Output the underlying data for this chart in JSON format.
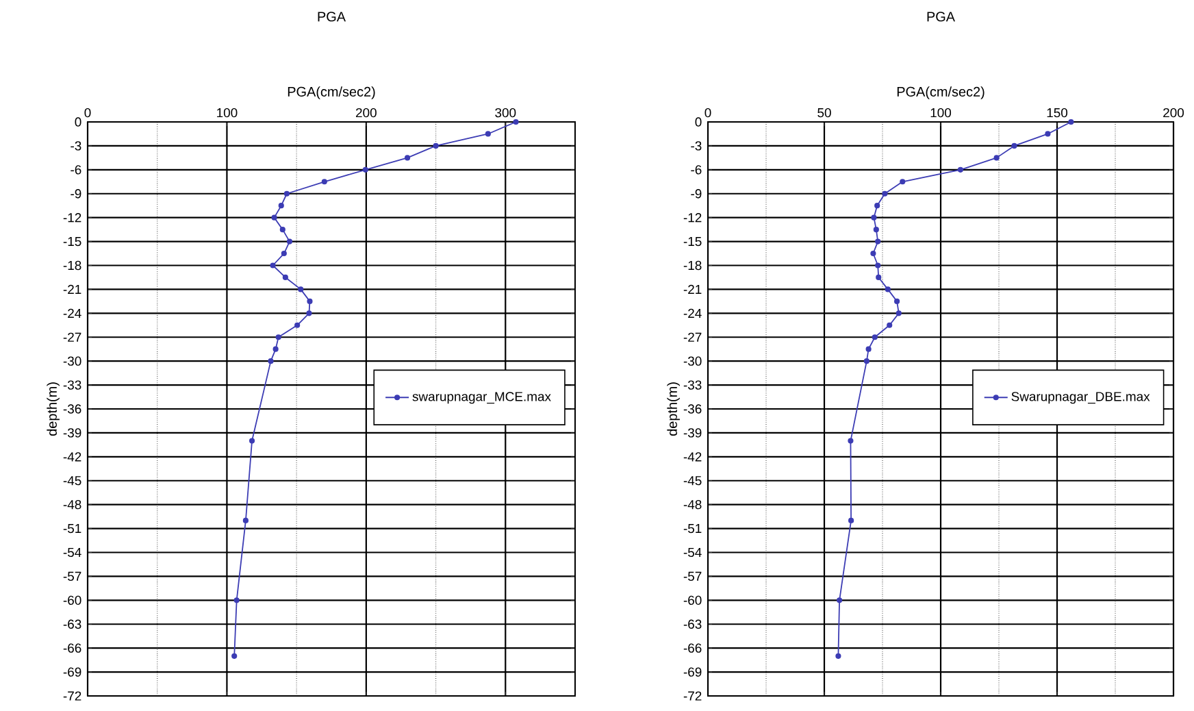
{
  "chart_data": [
    {
      "type": "line",
      "title": "PGA",
      "xlabel": "PGA(cm/sec2)",
      "ylabel": "depth(m)",
      "orientation": "horizontal",
      "xlim": [
        0,
        350
      ],
      "xticks": [
        0,
        {
          "value": 50,
          "label": null
        },
        100,
        {
          "value": 150,
          "label": null
        },
        200,
        {
          "value": 250,
          "label": null
        },
        300,
        {
          "value": 350,
          "label": null
        }
      ],
      "ylim": [
        -72,
        0
      ],
      "yticks": [
        0,
        -3,
        -6,
        -9,
        -12,
        -15,
        -18,
        -21,
        -24,
        -27,
        -30,
        -33,
        -36,
        -39,
        -42,
        -45,
        -48,
        -51,
        -54,
        -57,
        -60,
        -63,
        -66,
        -69,
        -72
      ],
      "grid": true,
      "legend": "right",
      "marker": "circle",
      "line_style": "solid",
      "series": [
        {
          "name": "swarupnagar_MCE.max",
          "color": "#3c3cb4",
          "values": [
            307.5,
            287.5,
            250,
            229.6,
            199.5,
            170,
            143,
            139,
            134,
            140,
            145,
            141,
            133,
            142,
            153,
            159.5,
            159,
            150.5,
            137,
            135,
            131.5,
            118,
            113.5,
            107,
            105.3
          ],
          "x": [
            0,
            -1.5,
            -3,
            -4.5,
            -6,
            -7.5,
            -9,
            -10.5,
            -12,
            -13.5,
            -15,
            -16.5,
            -18,
            -19.5,
            -21,
            -22.5,
            -24,
            -25.5,
            -27,
            -28.5,
            -30,
            -40,
            -50,
            -60,
            -67
          ]
        }
      ]
    },
    {
      "type": "line",
      "title": "PGA",
      "xlabel": "PGA(cm/sec2)",
      "ylabel": "depth(m)",
      "orientation": "horizontal",
      "xlim": [
        0,
        200
      ],
      "xticks": [
        0,
        {
          "value": 25,
          "label": null
        },
        50,
        {
          "value": 75,
          "label": null
        },
        100,
        {
          "value": 125,
          "label": null
        },
        150,
        {
          "value": 175,
          "label": null
        },
        200
      ],
      "ylim": [
        -72,
        0
      ],
      "yticks": [
        0,
        -3,
        -6,
        -9,
        -12,
        -15,
        -18,
        -21,
        -24,
        -27,
        -30,
        -33,
        -36,
        -39,
        -42,
        -45,
        -48,
        -51,
        -54,
        -57,
        -60,
        -63,
        -66,
        -69,
        -72
      ],
      "grid": true,
      "legend": "right",
      "marker": "circle",
      "line_style": "solid",
      "series": [
        {
          "name": "Swarupnagar_DBE.max",
          "color": "#3c3cb4",
          "values": [
            156,
            146,
            131.6,
            124,
            108.5,
            83.6,
            76,
            72.7,
            71.3,
            72.3,
            73,
            71,
            73,
            73.3,
            77.3,
            81.2,
            82,
            78,
            71.7,
            69,
            68.2,
            61.3,
            61.5,
            56.5,
            56
          ],
          "x": [
            0,
            -1.5,
            -3,
            -4.5,
            -6,
            -7.5,
            -9,
            -10.5,
            -12,
            -13.5,
            -15,
            -16.5,
            -18,
            -19.5,
            -21,
            -22.5,
            -24,
            -25.5,
            -27,
            -28.5,
            -30,
            -40,
            -50,
            -60,
            -67
          ]
        }
      ]
    }
  ]
}
